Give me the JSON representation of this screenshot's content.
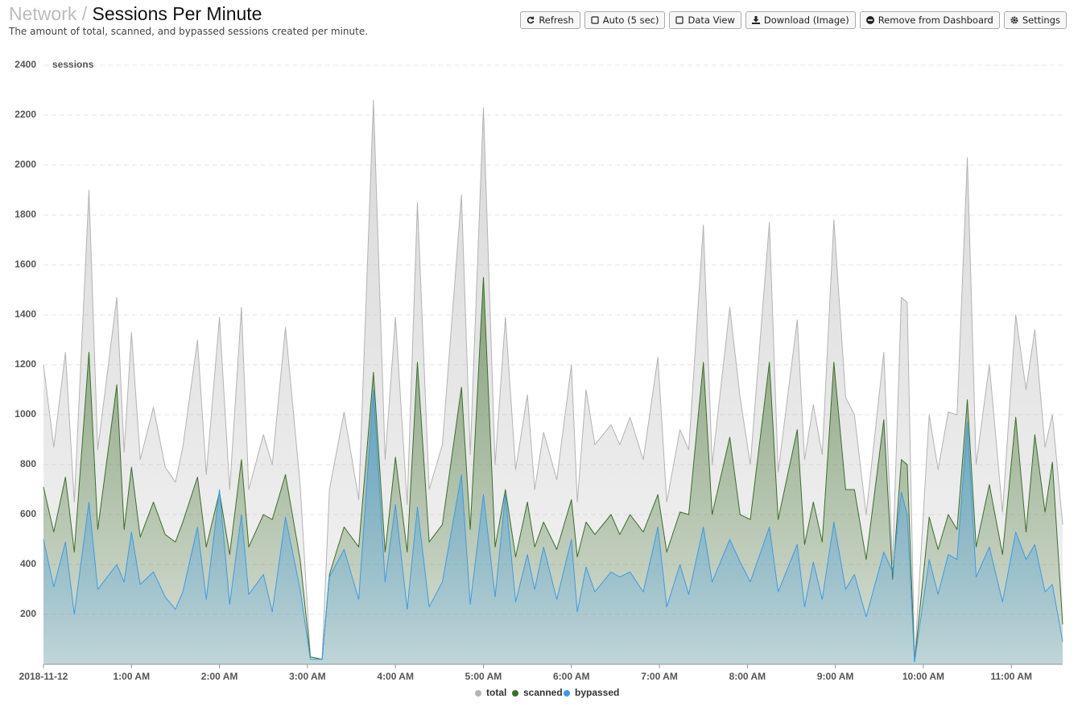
{
  "header": {
    "breadcrumb": "Network",
    "separator": "/",
    "title": "Sessions Per Minute",
    "description": "The amount of total, scanned, and bypassed sessions created per minute."
  },
  "buttons": [
    "Refresh",
    "Auto (5 sec)",
    "Data View",
    "Download (Image)",
    "Remove from Dashboard",
    "Settings"
  ],
  "chart_data": {
    "type": "area",
    "y_label": "sessions",
    "x": [
      0,
      7,
      15,
      21,
      31,
      37,
      50,
      55,
      60,
      66,
      75,
      83,
      90,
      95,
      105,
      111,
      120,
      127,
      135,
      140,
      150,
      156,
      165,
      175,
      182,
      190,
      195,
      205,
      215,
      225,
      233,
      240,
      248,
      255,
      263,
      272,
      285,
      291,
      300,
      308,
      315,
      322,
      330,
      335,
      341,
      350,
      360,
      364,
      370,
      376,
      387,
      393,
      400,
      409,
      419,
      425,
      434,
      440,
      450,
      456,
      468,
      475,
      482,
      495,
      501,
      514,
      519,
      525,
      531,
      539,
      547,
      553,
      561,
      573,
      579,
      585,
      589,
      594,
      604,
      610,
      617,
      623,
      630,
      636,
      645,
      654,
      663,
      670,
      676,
      683,
      688,
      695
    ],
    "series": [
      {
        "name": "total",
        "color": "#b3b3b3",
        "values": [
          1200,
          870,
          1250,
          650,
          1900,
          860,
          1470,
          850,
          1330,
          820,
          1030,
          790,
          730,
          870,
          1300,
          760,
          1390,
          700,
          1430,
          700,
          920,
          800,
          1350,
          720,
          30,
          20,
          700,
          1010,
          660,
          2260,
          820,
          1390,
          640,
          1850,
          700,
          880,
          1880,
          840,
          2230,
          800,
          1390,
          780,
          1080,
          700,
          930,
          740,
          1200,
          650,
          1100,
          880,
          960,
          880,
          990,
          820,
          1230,
          650,
          940,
          860,
          1760,
          800,
          1430,
          1070,
          800,
          1770,
          770,
          1380,
          820,
          1040,
          840,
          1780,
          1070,
          1000,
          600,
          1250,
          400,
          1470,
          1450,
          10,
          1000,
          780,
          1010,
          1000,
          2030,
          800,
          1200,
          610,
          1400,
          1100,
          1340,
          870,
          1000,
          560
        ]
      },
      {
        "name": "scanned",
        "color": "#3a6e28",
        "values": [
          710,
          530,
          750,
          450,
          1250,
          540,
          1120,
          540,
          790,
          510,
          650,
          520,
          490,
          570,
          750,
          470,
          690,
          440,
          820,
          470,
          600,
          580,
          760,
          420,
          30,
          20,
          360,
          550,
          470,
          1170,
          450,
          830,
          450,
          1210,
          490,
          560,
          1110,
          540,
          1550,
          470,
          700,
          430,
          650,
          470,
          570,
          460,
          660,
          430,
          570,
          520,
          600,
          520,
          600,
          530,
          680,
          450,
          610,
          600,
          1210,
          600,
          910,
          600,
          580,
          1210,
          580,
          940,
          480,
          650,
          490,
          1210,
          700,
          700,
          420,
          980,
          340,
          820,
          800,
          10,
          590,
          460,
          600,
          540,
          1060,
          470,
          720,
          440,
          990,
          530,
          920,
          610,
          810,
          160
        ]
      },
      {
        "name": "bypassed",
        "color": "#3a9be8",
        "values": [
          500,
          310,
          490,
          200,
          650,
          300,
          400,
          330,
          530,
          320,
          370,
          270,
          220,
          290,
          550,
          260,
          700,
          240,
          600,
          280,
          360,
          210,
          590,
          300,
          20,
          20,
          350,
          460,
          260,
          1100,
          330,
          640,
          220,
          630,
          230,
          330,
          760,
          240,
          680,
          270,
          680,
          250,
          440,
          300,
          470,
          260,
          500,
          210,
          390,
          290,
          370,
          350,
          370,
          290,
          550,
          230,
          400,
          280,
          550,
          330,
          500,
          410,
          330,
          550,
          290,
          480,
          230,
          410,
          260,
          570,
          300,
          360,
          190,
          450,
          370,
          690,
          600,
          10,
          420,
          280,
          440,
          420,
          970,
          350,
          470,
          250,
          530,
          420,
          480,
          290,
          320,
          90
        ]
      }
    ],
    "xlim": [
      0,
      695
    ],
    "xticks": [
      {
        "value": 0,
        "label": "2018-11-12"
      },
      {
        "value": 60,
        "label": "1:00 AM"
      },
      {
        "value": 120,
        "label": "2:00 AM"
      },
      {
        "value": 180,
        "label": "3:00 AM"
      },
      {
        "value": 240,
        "label": "4:00 AM"
      },
      {
        "value": 300,
        "label": "5:00 AM"
      },
      {
        "value": 360,
        "label": "6:00 AM"
      },
      {
        "value": 420,
        "label": "7:00 AM"
      },
      {
        "value": 480,
        "label": "8:00 AM"
      },
      {
        "value": 540,
        "label": "9:00 AM"
      },
      {
        "value": 600,
        "label": "10:00 AM"
      },
      {
        "value": 660,
        "label": "11:00 AM"
      }
    ],
    "ylim": [
      0,
      2400
    ],
    "yticks": [
      200,
      400,
      600,
      800,
      1000,
      1200,
      1400,
      1600,
      1800,
      2000,
      2200,
      2400
    ],
    "grid": true,
    "legend": "bottom"
  }
}
